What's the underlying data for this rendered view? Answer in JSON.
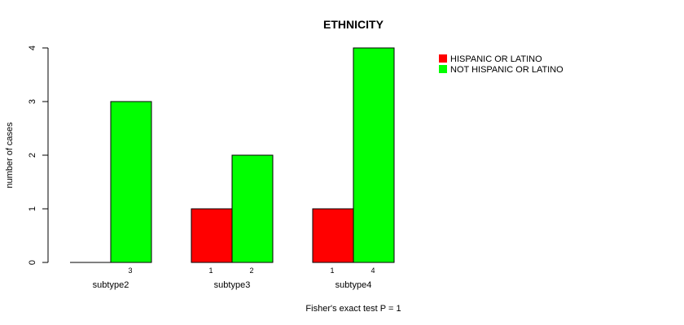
{
  "chart_data": {
    "type": "bar",
    "title": "ETHNICITY",
    "xlabel": "Fisher's exact test P = 1",
    "ylabel": "number of cases",
    "categories": [
      "subtype2",
      "subtype3",
      "subtype4"
    ],
    "series": [
      {
        "name": "HISPANIC OR LATINO",
        "values": [
          0,
          1,
          1
        ],
        "color": "#ff0000"
      },
      {
        "name": "NOT HISPANIC OR LATINO",
        "values": [
          3,
          2,
          4
        ],
        "color": "#00ff00"
      }
    ],
    "ylim": [
      0,
      4
    ],
    "yticks": [
      "0",
      "1",
      "2",
      "3",
      "4"
    ],
    "bar_labels": [
      [
        "",
        "1",
        "1"
      ],
      [
        "3",
        "2",
        "4"
      ]
    ],
    "legend_position": "top-right",
    "grid": false
  }
}
